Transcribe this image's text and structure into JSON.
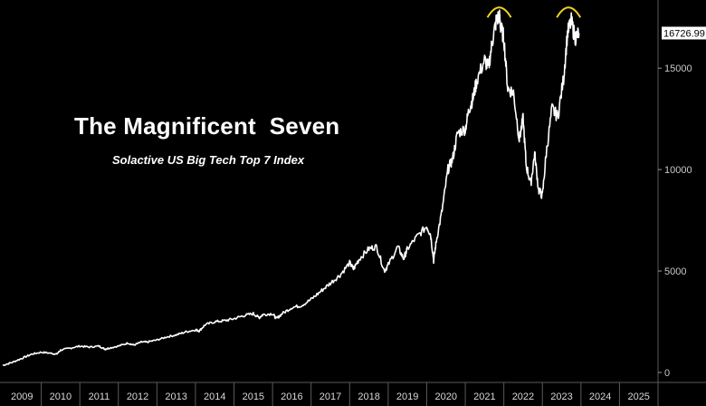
{
  "chart_data": {
    "type": "line",
    "title": "The Magnificent  Seven",
    "subtitle": "Solactive US Big Tech Top 7 Index",
    "xlabel": "",
    "ylabel": "",
    "x_ticks": [
      "2009",
      "2010",
      "2011",
      "2012",
      "2013",
      "2014",
      "2015",
      "2016",
      "2017",
      "2018",
      "2019",
      "2020",
      "2021",
      "2022",
      "2023",
      "2024",
      "2025"
    ],
    "y_ticks": [
      0,
      5000,
      10000,
      15000
    ],
    "ylim": [
      0,
      18000
    ],
    "xlim": [
      2009.0,
      2026.0
    ],
    "last_value_label": "16726.99",
    "line_color": "#ffffff",
    "annotation_color": "#f2d21b",
    "annotations": [
      "arch-peak-2021",
      "arch-peak-2023"
    ],
    "series": [
      {
        "x": [
          2009.0,
          2009.25,
          2009.5,
          2009.75,
          2010.0,
          2010.25,
          2010.4,
          2010.5,
          2010.75,
          2011.0,
          2011.25,
          2011.5,
          2011.65,
          2011.75,
          2012.0,
          2012.25,
          2012.4,
          2012.6,
          2012.75,
          2013.0,
          2013.25,
          2013.5,
          2013.75,
          2014.0,
          2014.1,
          2014.25,
          2014.5,
          2014.75,
          2015.0,
          2015.25,
          2015.5,
          2015.65,
          2015.75,
          2016.0,
          2016.1,
          2016.25,
          2016.5,
          2016.75,
          2017.0,
          2017.25,
          2017.5,
          2017.75,
          2018.0,
          2018.1,
          2018.25,
          2018.5,
          2018.7,
          2018.9,
          2019.0,
          2019.25,
          2019.4,
          2019.5,
          2019.75,
          2020.0,
          2020.1,
          2020.18,
          2020.25,
          2020.4,
          2020.55,
          2020.67,
          2020.8,
          2021.0,
          2021.1,
          2021.2,
          2021.3,
          2021.5,
          2021.6,
          2021.7,
          2021.8,
          2021.88,
          2021.92,
          2022.0,
          2022.1,
          2022.25,
          2022.4,
          2022.5,
          2022.58,
          2022.7,
          2022.8,
          2022.9,
          2023.0,
          2023.1,
          2023.25,
          2023.4,
          2023.55,
          2023.65,
          2023.75,
          2023.85,
          2023.95
        ],
        "y": [
          350,
          500,
          700,
          900,
          1000,
          950,
          900,
          1100,
          1200,
          1300,
          1250,
          1300,
          1150,
          1200,
          1300,
          1450,
          1350,
          1500,
          1500,
          1600,
          1750,
          1850,
          2000,
          2100,
          2050,
          2350,
          2500,
          2550,
          2650,
          2800,
          2900,
          2700,
          2850,
          2900,
          2650,
          2900,
          3200,
          3300,
          3600,
          4000,
          4400,
          4800,
          5400,
          5100,
          5600,
          6100,
          6200,
          5000,
          5300,
          6200,
          5600,
          6100,
          6700,
          7200,
          6800,
          5500,
          6500,
          8000,
          10000,
          10500,
          11800,
          12000,
          13000,
          13500,
          14400,
          15400,
          15000,
          16300,
          17300,
          17600,
          17000,
          16500,
          14000,
          13800,
          11500,
          12500,
          10200,
          9300,
          10800,
          9000,
          8700,
          10800,
          13000,
          12600,
          14500,
          16700,
          17300,
          16500,
          16727
        ]
      }
    ]
  }
}
